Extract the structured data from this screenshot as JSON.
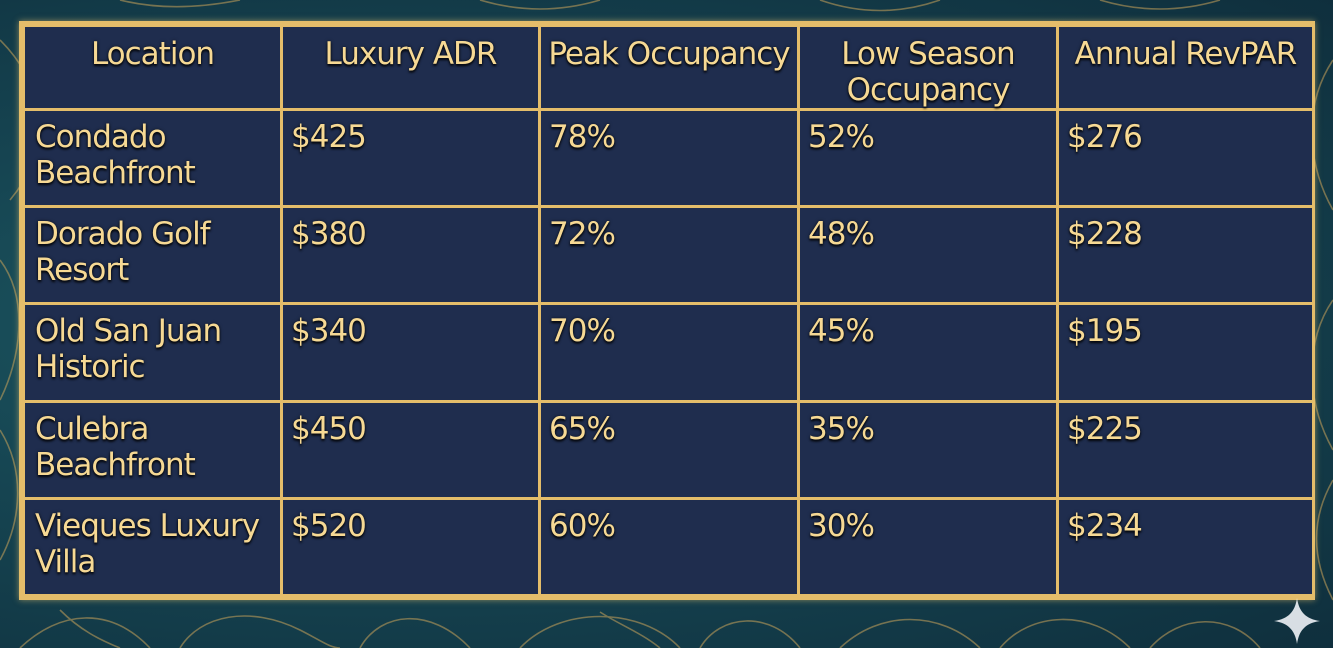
{
  "table": {
    "headers": [
      "Location",
      "Luxury ADR",
      "Peak Occupancy",
      "Low Season Occupancy",
      "Annual RevPAR"
    ],
    "rows": [
      [
        "Condado Beachfront",
        "$425",
        "78%",
        "52%",
        "$276"
      ],
      [
        "Dorado Golf Resort",
        "$380",
        "72%",
        "48%",
        "$228"
      ],
      [
        "Old San Juan Historic",
        "$340",
        "70%",
        "45%",
        "$195"
      ],
      [
        "Culebra Beachfront",
        "$450",
        "65%",
        "35%",
        "$225"
      ],
      [
        "Vieques Luxury Villa",
        "$520",
        "60%",
        "30%",
        "$234"
      ]
    ]
  },
  "decor": {
    "icons": [
      "gold-line-art-background",
      "sparkle-icon"
    ],
    "colors": {
      "background": "#164552",
      "table_fill": "#1f2d4e",
      "grid_gold": "#e4bd6a",
      "text_gold": "#f6d994"
    }
  }
}
